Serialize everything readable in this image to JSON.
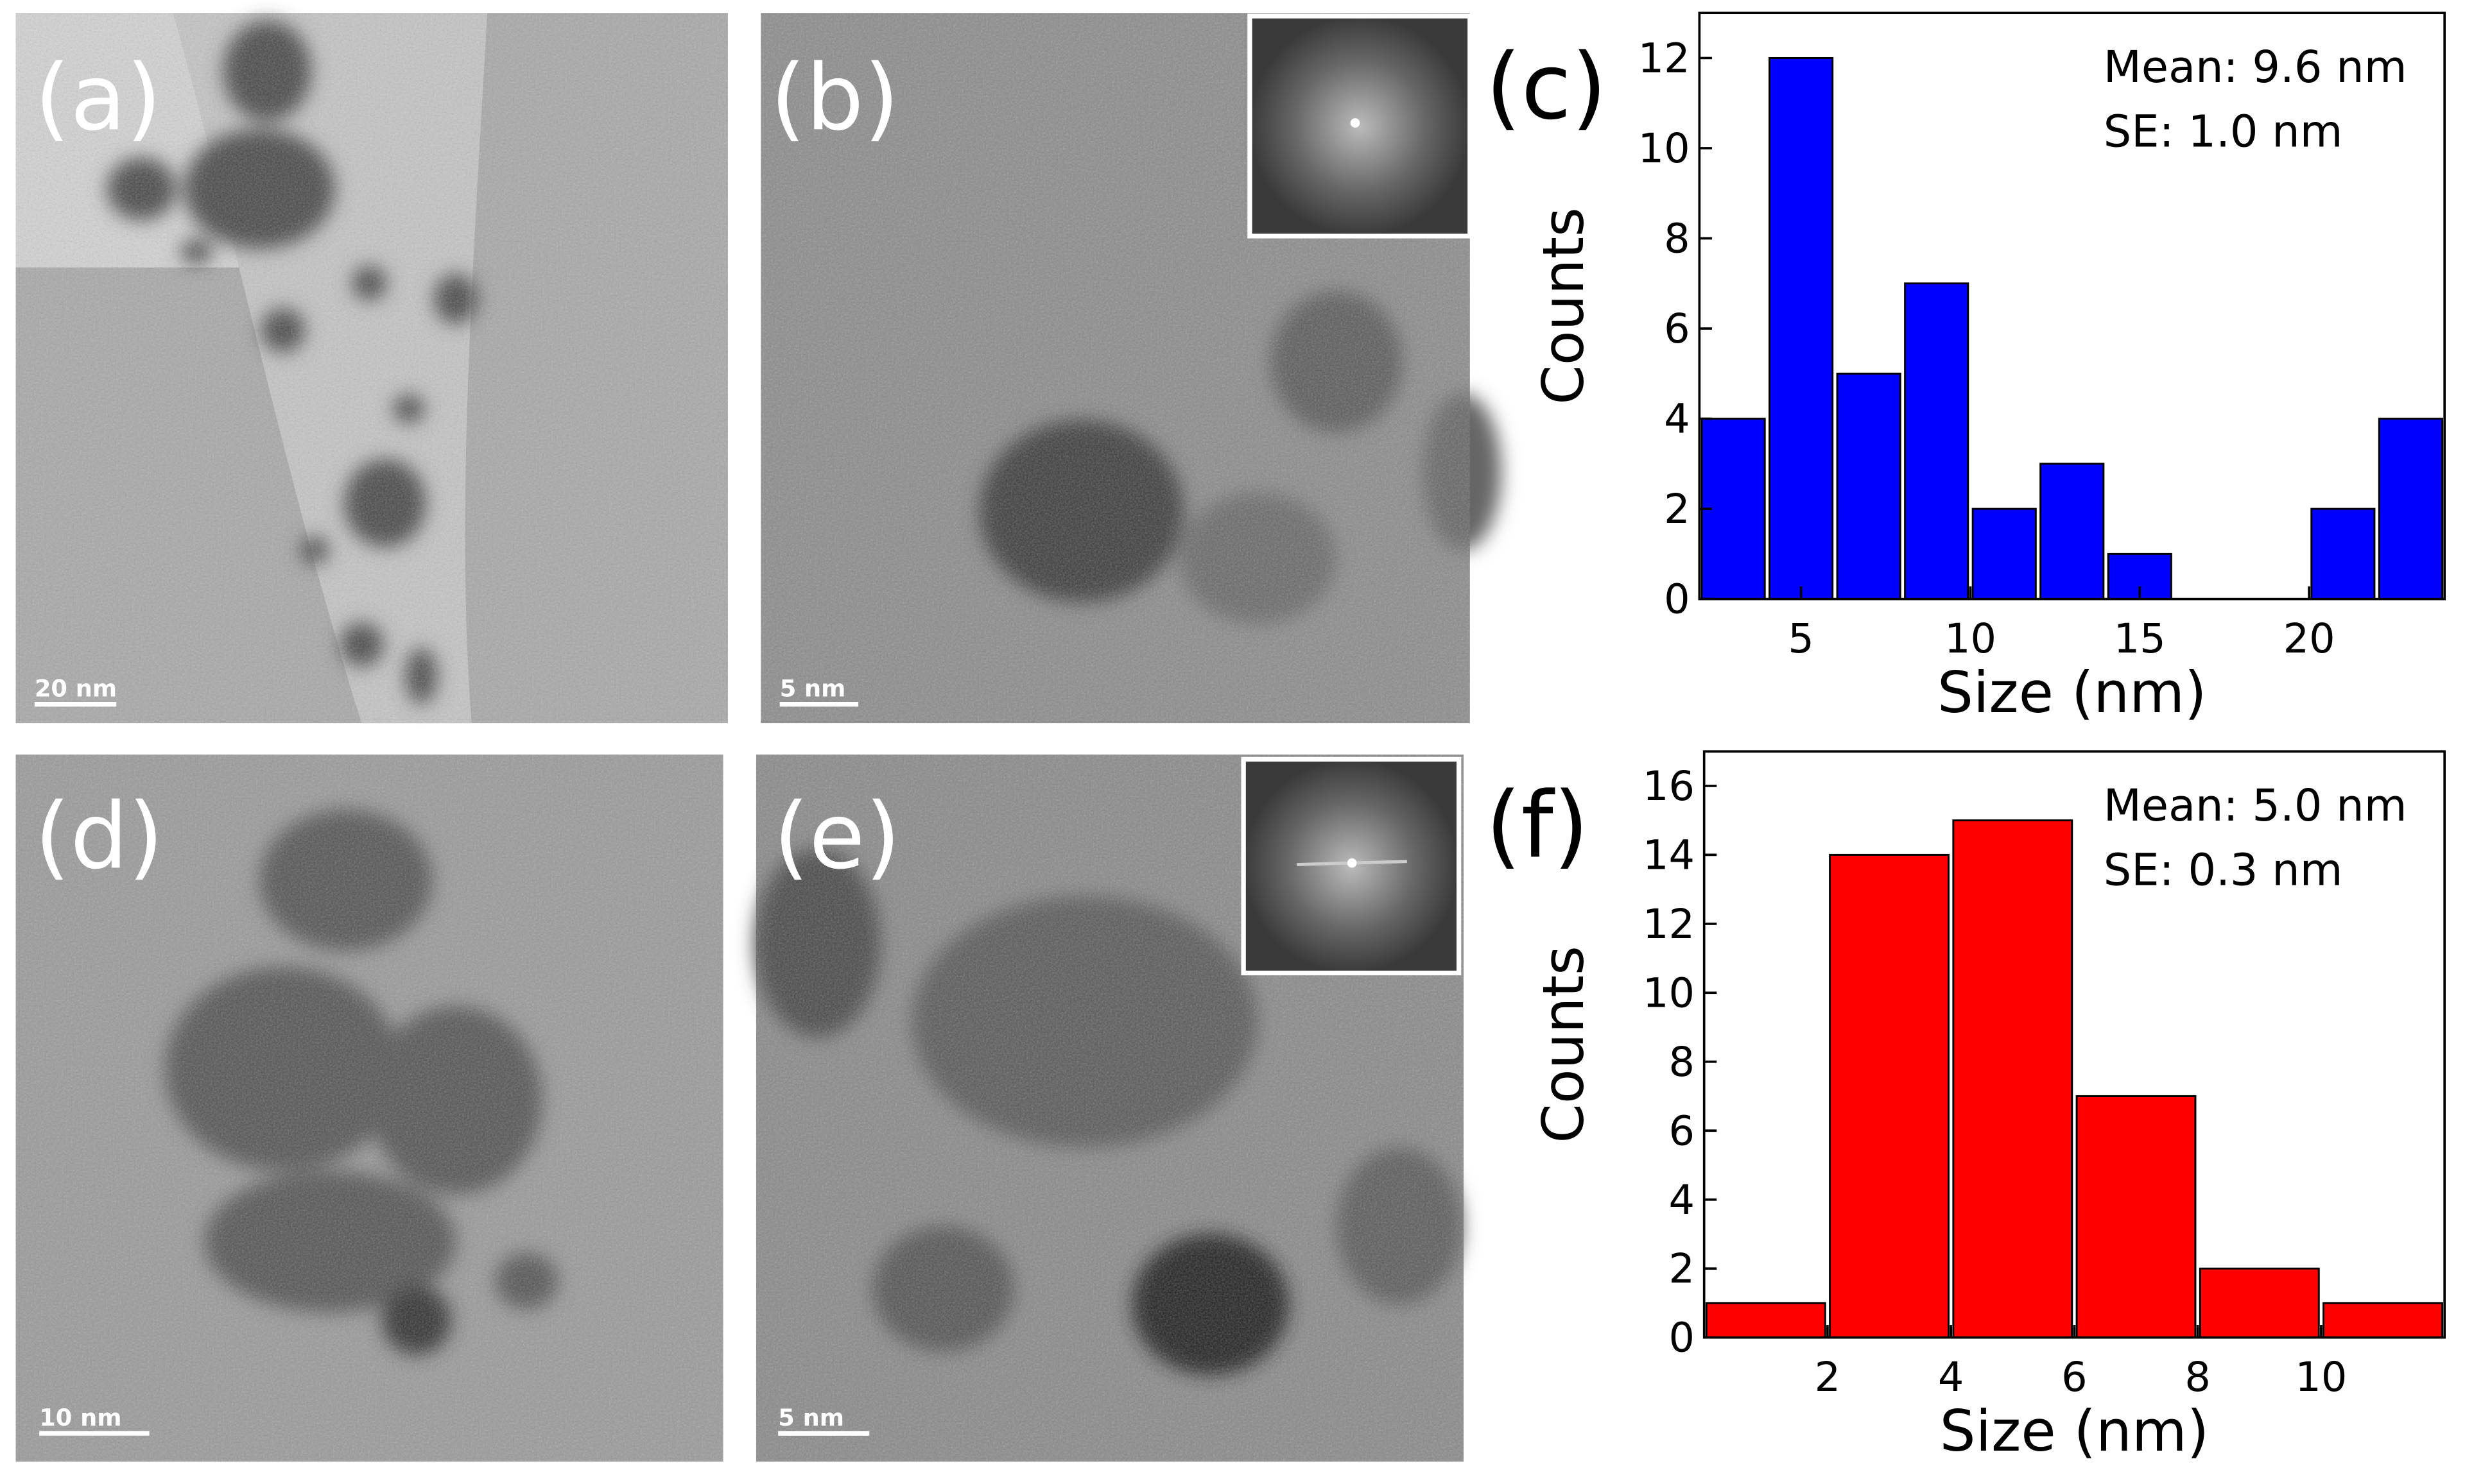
{
  "panels": [
    {
      "label": "(a)",
      "scale_bar": "20 nm"
    },
    {
      "label": "(b)",
      "scale_bar": "5 nm"
    },
    {
      "label": "(d)",
      "scale_bar": "10 nm"
    },
    {
      "label": "(e)",
      "scale_bar": "5 nm"
    }
  ],
  "chart_data": [
    {
      "type": "histogram",
      "panel_label": "(c)",
      "x_label": "Size (nm)",
      "y_label": "Counts",
      "annotations": [
        "Mean: 9.6 nm",
        "SE: 1.0 nm"
      ],
      "bins": [
        2,
        4,
        6,
        8,
        10,
        12,
        14,
        16,
        18,
        20,
        22,
        24
      ],
      "values": [
        4,
        12,
        5,
        7,
        2,
        3,
        1,
        0,
        0,
        2,
        4
      ],
      "color": "#0000ff",
      "xlim": [
        2,
        24
      ],
      "xticks": [
        5,
        10,
        15,
        20
      ],
      "ylim": [
        0,
        13
      ],
      "yticks": [
        0,
        2,
        4,
        6,
        8,
        10,
        12
      ]
    },
    {
      "type": "histogram",
      "panel_label": "(f)",
      "x_label": "Size (nm)",
      "y_label": "Counts",
      "annotations": [
        "Mean: 5.0 nm",
        "SE: 0.3 nm"
      ],
      "bins": [
        0,
        2,
        4,
        6,
        8,
        10,
        12
      ],
      "values": [
        1,
        14,
        15,
        7,
        2,
        1
      ],
      "color": "#ff0000",
      "xlim": [
        0,
        12
      ],
      "xticks": [
        2,
        4,
        6,
        8,
        10
      ],
      "ylim": [
        0,
        17
      ],
      "yticks": [
        0,
        2,
        4,
        6,
        8,
        10,
        12,
        14,
        16
      ]
    }
  ]
}
